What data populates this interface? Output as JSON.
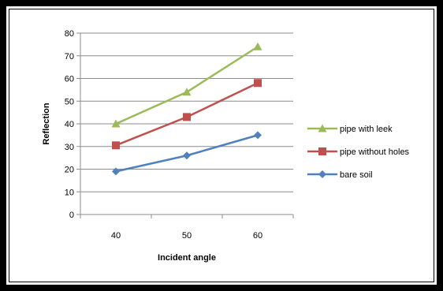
{
  "chart_data": {
    "type": "line",
    "x": [
      40,
      50,
      60
    ],
    "categories": [
      "40",
      "50",
      "60"
    ],
    "xlabel": "Incident angle",
    "ylabel": "Reflection",
    "ylim": [
      0,
      80
    ],
    "yticks": [
      0,
      10,
      20,
      30,
      40,
      50,
      60,
      70,
      80
    ],
    "grid": "horizontal",
    "legend_position": "right",
    "series": [
      {
        "name": "pipe with leek",
        "values": [
          40,
          54,
          74
        ],
        "color": "#9bbb59",
        "marker": "triangle"
      },
      {
        "name": "pipe without holes",
        "values": [
          30.5,
          43,
          58
        ],
        "color": "#c0504d",
        "marker": "square"
      },
      {
        "name": "bare soil",
        "values": [
          19,
          26,
          35
        ],
        "color": "#4f81bd",
        "marker": "diamond"
      }
    ]
  }
}
